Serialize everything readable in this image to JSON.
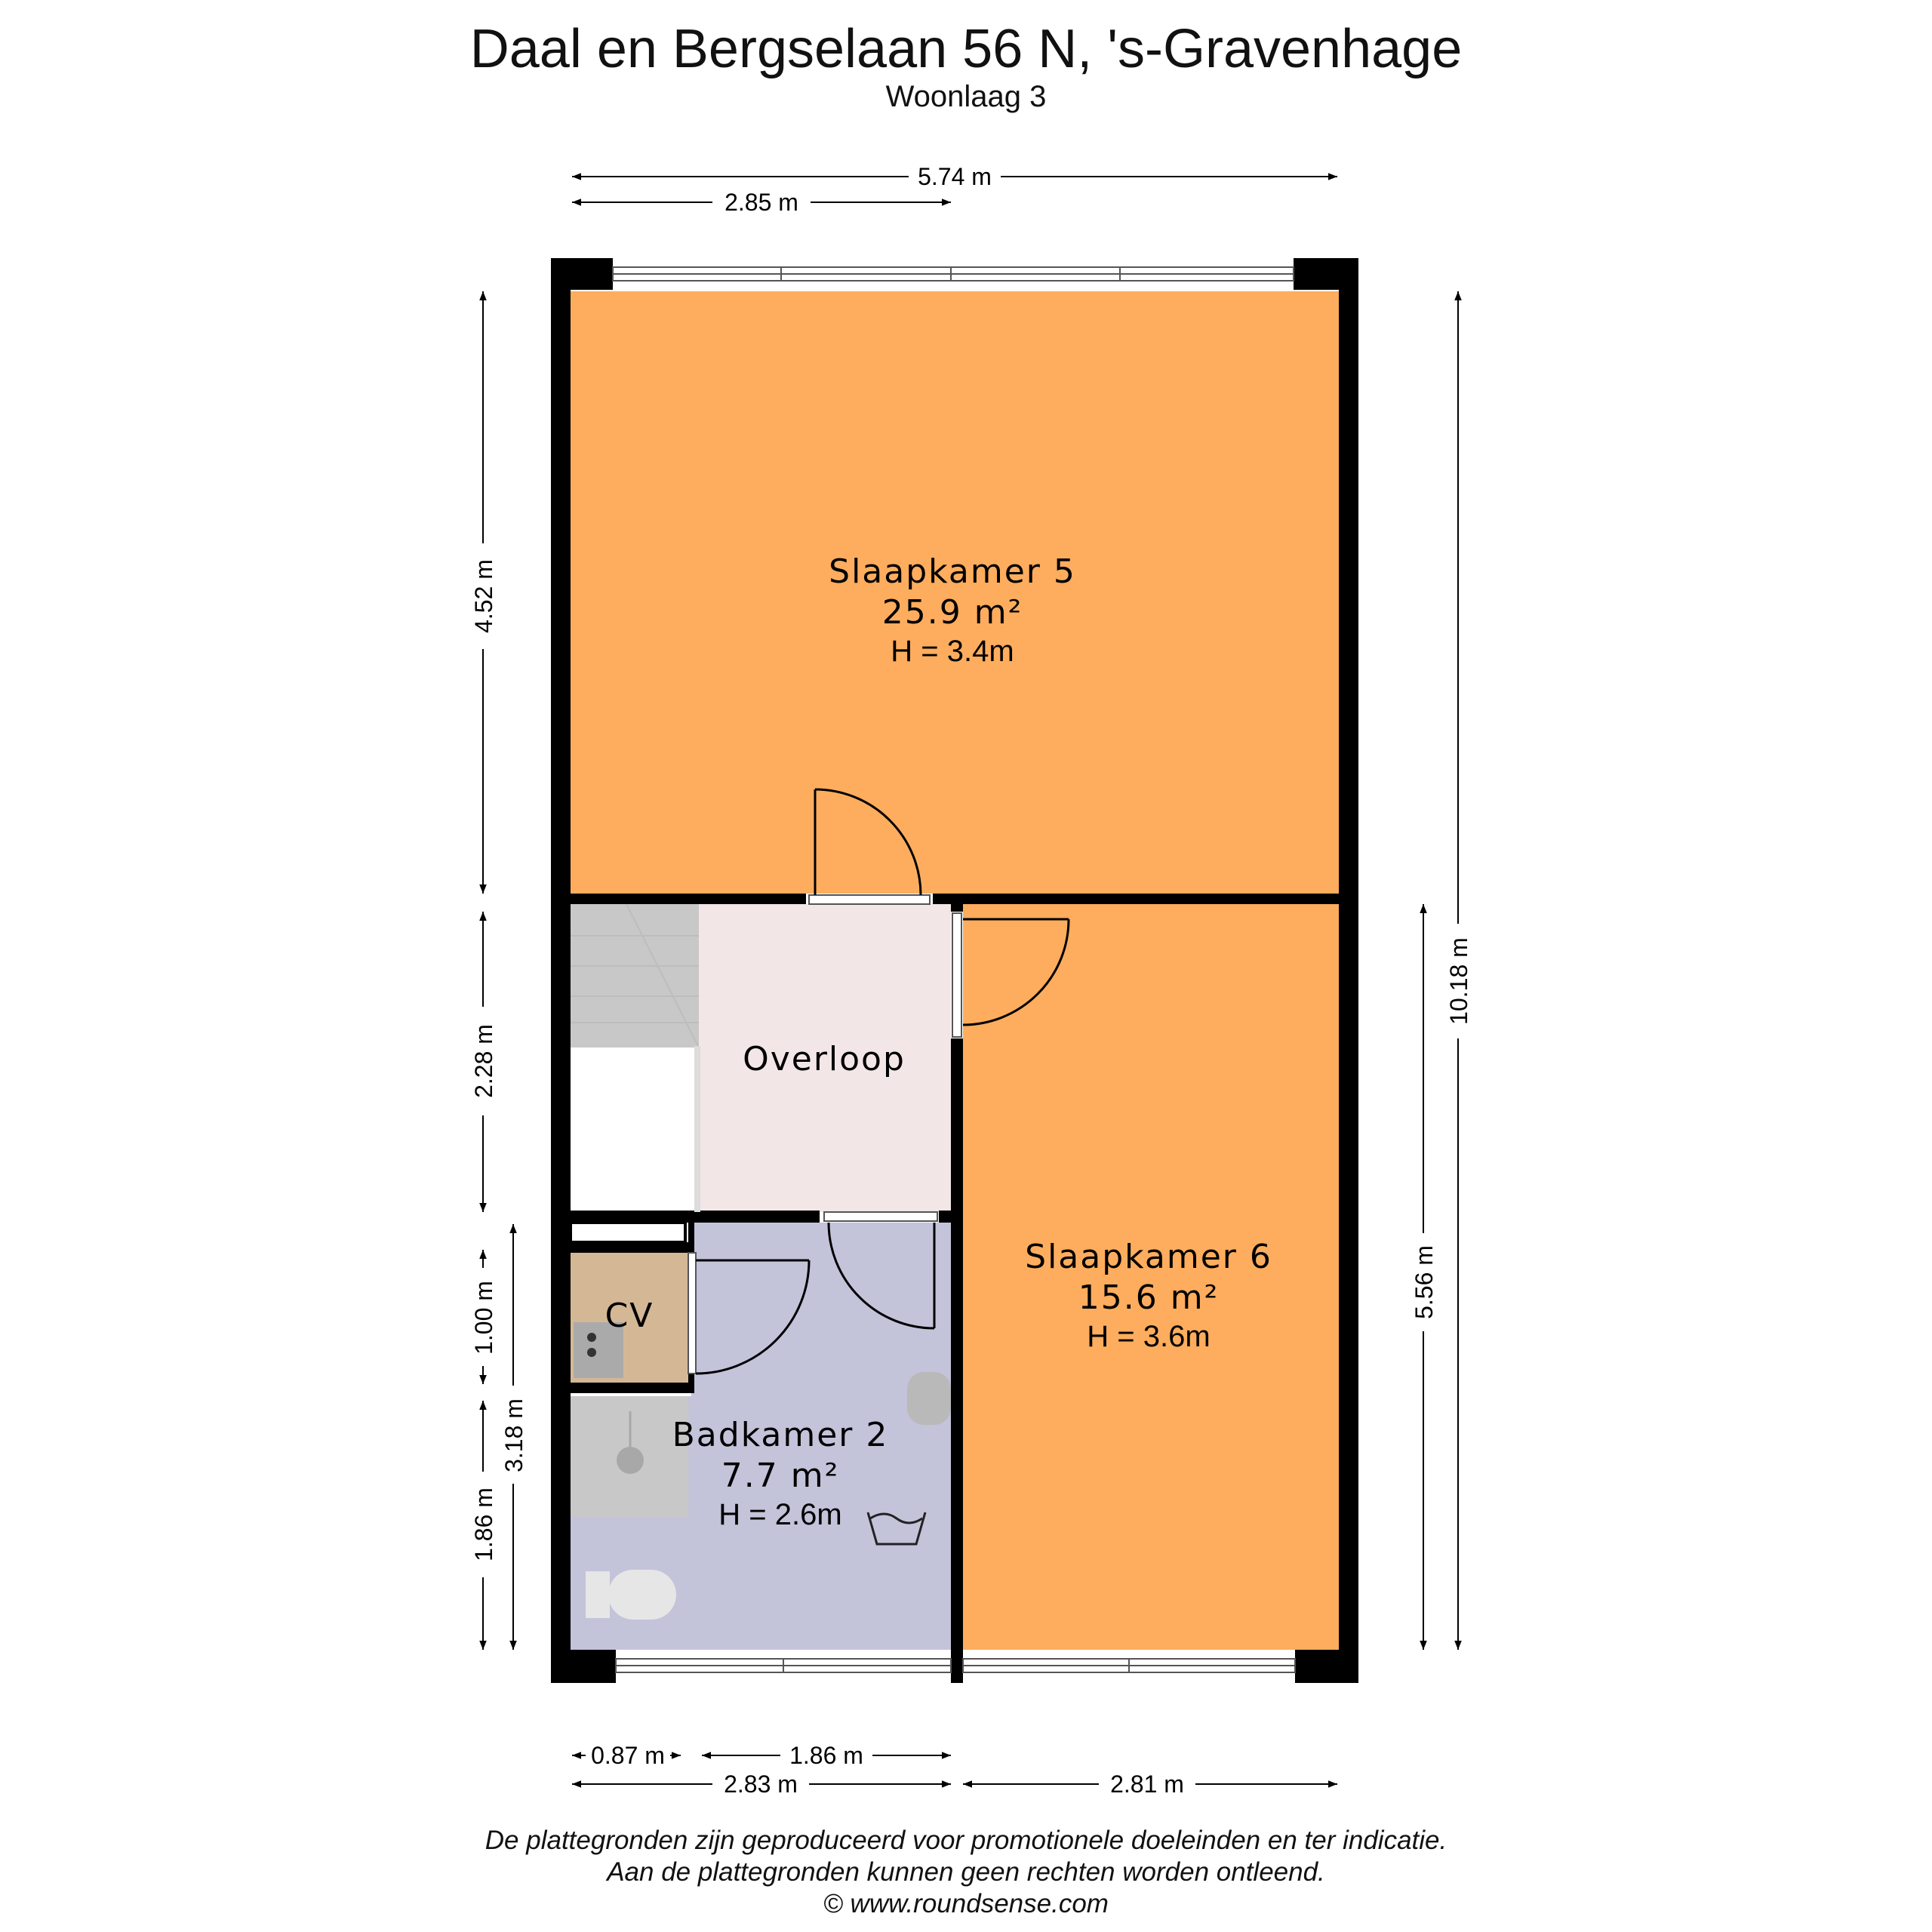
{
  "header": {
    "title": "Daal en Bergselaan 56 N, 's-Gravenhage",
    "subtitle": "Woonlaag 3"
  },
  "rooms": {
    "slaapkamer5": {
      "name": "Slaapkamer 5",
      "area": "25.9 m²",
      "height": "H = 3.4m"
    },
    "slaapkamer6": {
      "name": "Slaapkamer 6",
      "area": "15.6 m²",
      "height": "H = 3.6m"
    },
    "badkamer2": {
      "name": "Badkamer 2",
      "area": "7.7 m²",
      "height": "H = 2.6m"
    },
    "overloop": {
      "name": "Overloop"
    },
    "cv": {
      "name": "CV"
    }
  },
  "dimensions": {
    "top_total": "5.74 m",
    "top_left": "2.85 m",
    "bottom_087": "0.87 m",
    "bottom_186": "1.86 m",
    "bottom_283": "2.83 m",
    "bottom_281": "2.81 m",
    "left_452": "4.52 m",
    "left_228": "2.28 m",
    "left_100": "1.00 m",
    "left_186": "1.86 m",
    "left_318": "3.18 m",
    "right_1018": "10.18 m",
    "right_556": "5.56 m"
  },
  "footer": {
    "line1": "De plattegronden zijn geproduceerd voor promotionele doeleinden en ter indicatie.",
    "line2": "Aan de plattegronden kunnen geen rechten worden ontleend.",
    "line3": "© www.roundsense.com"
  },
  "colors": {
    "bedroom": "#fdad5d",
    "landing": "#f2e6e6",
    "bathroom": "#c3c3da",
    "cv": "#d4b896",
    "stairs": "#c8c8c8",
    "wall": "#000000"
  }
}
